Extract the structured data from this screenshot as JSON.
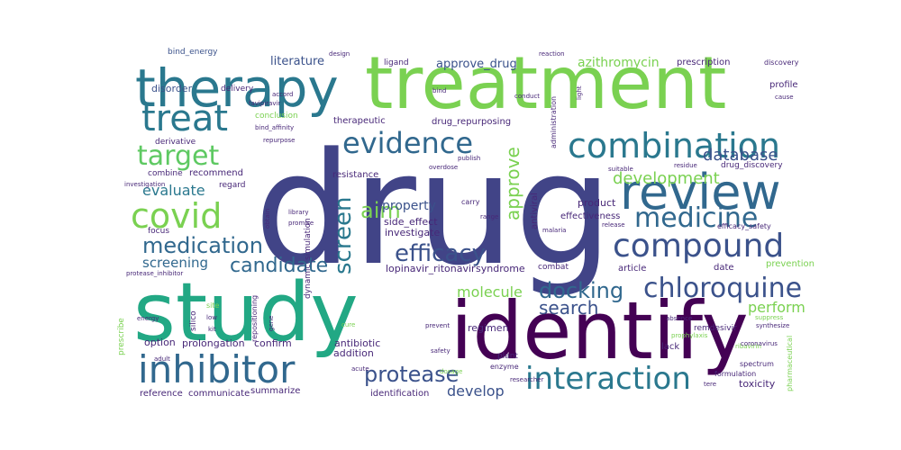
{
  "cloud": {
    "words": [
      {
        "text": "drug",
        "color": "#414487"
      },
      {
        "text": "treatment",
        "color": "#7ad151"
      },
      {
        "text": "study",
        "color": "#22a884"
      },
      {
        "text": "identify",
        "color": "#440154"
      },
      {
        "text": "therapy",
        "color": "#2a788e"
      },
      {
        "text": "review",
        "color": "#31688e"
      },
      {
        "text": "combination",
        "color": "#2a788e"
      },
      {
        "text": "treat",
        "color": "#2a788e"
      },
      {
        "text": "compound",
        "color": "#3b528b"
      },
      {
        "text": "inhibitor",
        "color": "#31688e"
      },
      {
        "text": "covid",
        "color": "#7ad151"
      },
      {
        "text": "medicine",
        "color": "#31688e"
      },
      {
        "text": "interaction",
        "color": "#2a788e"
      },
      {
        "text": "evidence",
        "color": "#31688e"
      },
      {
        "text": "target",
        "color": "#5ec962"
      },
      {
        "text": "chloroquine",
        "color": "#3b528b"
      },
      {
        "text": "medication",
        "color": "#31688e"
      },
      {
        "text": "efficacy",
        "color": "#3b528b"
      },
      {
        "text": "protease",
        "color": "#3b528b"
      },
      {
        "text": "docking",
        "color": "#31688e"
      },
      {
        "text": "screen",
        "color": "#2a788e"
      },
      {
        "text": "candidate",
        "color": "#31688e"
      },
      {
        "text": "search",
        "color": "#3b528b"
      },
      {
        "text": "aim",
        "color": "#7ad151"
      },
      {
        "text": "approve",
        "color": "#7ad151"
      },
      {
        "text": "database",
        "color": "#3b528b"
      },
      {
        "text": "development",
        "color": "#7ad151"
      },
      {
        "text": "evaluate",
        "color": "#2a788e"
      },
      {
        "text": "screening",
        "color": "#31688e"
      },
      {
        "text": "molecule",
        "color": "#7ad151"
      },
      {
        "text": "perform",
        "color": "#7ad151"
      },
      {
        "text": "property",
        "color": "#3b528b"
      },
      {
        "text": "develop",
        "color": "#3b528b"
      },
      {
        "text": "azithromycin",
        "color": "#7ad151"
      },
      {
        "text": "approve_drug",
        "color": "#3b528b"
      },
      {
        "text": "literature",
        "color": "#3b528b"
      },
      {
        "text": "disorder",
        "color": "#3b528b"
      },
      {
        "text": "delivery",
        "color": "#482878"
      },
      {
        "text": "bind_energy",
        "color": "#3b528b"
      },
      {
        "text": "drug_repurposing",
        "color": "#482878"
      },
      {
        "text": "therapeutic",
        "color": "#482878"
      },
      {
        "text": "regimen",
        "color": "#482878"
      },
      {
        "text": "resistance",
        "color": "#482878"
      },
      {
        "text": "side_effect",
        "color": "#482878"
      },
      {
        "text": "investigate",
        "color": "#482878"
      },
      {
        "text": "effectiveness",
        "color": "#482878"
      },
      {
        "text": "product",
        "color": "#482878"
      },
      {
        "text": "prescription",
        "color": "#482878"
      },
      {
        "text": "discovery",
        "color": "#482878"
      },
      {
        "text": "profile",
        "color": "#482878"
      },
      {
        "text": "antibiotic",
        "color": "#482878"
      },
      {
        "text": "addition",
        "color": "#482878"
      },
      {
        "text": "identification",
        "color": "#482878"
      },
      {
        "text": "toxicity",
        "color": "#482878"
      },
      {
        "text": "reference",
        "color": "#482878"
      },
      {
        "text": "communicate",
        "color": "#482878"
      },
      {
        "text": "summarize",
        "color": "#482878"
      },
      {
        "text": "option",
        "color": "#482878"
      },
      {
        "text": "prolongation",
        "color": "#482878"
      },
      {
        "text": "confirm",
        "color": "#482878"
      },
      {
        "text": "lopinavir_ritonavir",
        "color": "#482878"
      },
      {
        "text": "syndrome",
        "color": "#482878"
      },
      {
        "text": "article",
        "color": "#482878"
      },
      {
        "text": "date",
        "color": "#482878"
      },
      {
        "text": "combat",
        "color": "#482878"
      },
      {
        "text": "focus",
        "color": "#482878"
      },
      {
        "text": "derivative",
        "color": "#482878"
      },
      {
        "text": "combine",
        "color": "#482878"
      },
      {
        "text": "recommend",
        "color": "#482878"
      },
      {
        "text": "regard",
        "color": "#482878"
      },
      {
        "text": "ligand",
        "color": "#482878"
      },
      {
        "text": "design",
        "color": "#482878"
      },
      {
        "text": "reaction",
        "color": "#482878"
      },
      {
        "text": "conduct",
        "color": "#482878"
      },
      {
        "text": "publish",
        "color": "#482878"
      },
      {
        "text": "range",
        "color": "#482878"
      },
      {
        "text": "carry",
        "color": "#482878"
      },
      {
        "text": "plant",
        "color": "#482878"
      },
      {
        "text": "enzyme",
        "color": "#482878"
      },
      {
        "text": "lack",
        "color": "#482878"
      },
      {
        "text": "release",
        "color": "#482878"
      },
      {
        "text": "formulation",
        "color": "#482878"
      },
      {
        "text": "spectrum",
        "color": "#482878"
      },
      {
        "text": "prevention",
        "color": "#7ad151"
      },
      {
        "text": "ribavirin",
        "color": "#7ad151"
      },
      {
        "text": "cure",
        "color": "#7ad151"
      },
      {
        "text": "remdesivir",
        "color": "#482878"
      },
      {
        "text": "prophylaxis",
        "color": "#7ad151"
      },
      {
        "text": "administration",
        "color": "#482878"
      },
      {
        "text": "library",
        "color": "#482878"
      },
      {
        "text": "promise",
        "color": "#482878"
      },
      {
        "text": "suitable",
        "color": "#482878"
      },
      {
        "text": "residue",
        "color": "#482878"
      },
      {
        "text": "drug_discovery",
        "color": "#482878"
      },
      {
        "text": "malaria",
        "color": "#482878"
      },
      {
        "text": "efficacy_safety",
        "color": "#482878"
      },
      {
        "text": "bind_affinity",
        "color": "#482878"
      },
      {
        "text": "conclusion",
        "color": "#7ad151"
      },
      {
        "text": "favipiravir",
        "color": "#482878"
      },
      {
        "text": "repurpose",
        "color": "#482878"
      },
      {
        "text": "cause",
        "color": "#482878"
      },
      {
        "text": "investigation",
        "color": "#482878"
      },
      {
        "text": "protease_inhibitor",
        "color": "#482878"
      },
      {
        "text": "silico",
        "color": "#482878"
      },
      {
        "text": "energy",
        "color": "#482878"
      },
      {
        "text": "dynamic_simulation",
        "color": "#482878"
      },
      {
        "text": "antiviral",
        "color": "#482878"
      },
      {
        "text": "safety",
        "color": "#482878"
      },
      {
        "text": "obtain",
        "color": "#482878"
      },
      {
        "text": "gene",
        "color": "#482878"
      },
      {
        "text": "light",
        "color": "#482878"
      },
      {
        "text": "bind",
        "color": "#482878"
      },
      {
        "text": "accord",
        "color": "#482878"
      },
      {
        "text": "overdose",
        "color": "#482878"
      },
      {
        "text": "prevent",
        "color": "#482878"
      },
      {
        "text": "acute",
        "color": "#482878"
      },
      {
        "text": "dosage",
        "color": "#7ad151"
      },
      {
        "text": "researcher",
        "color": "#482878"
      },
      {
        "text": "pharmaceutical",
        "color": "#7ad151"
      },
      {
        "text": "coronavirus",
        "color": "#482878"
      },
      {
        "text": "prescribe",
        "color": "#7ad151"
      },
      {
        "text": "adult",
        "color": "#482878"
      },
      {
        "text": "low",
        "color": "#482878"
      },
      {
        "text": "site",
        "color": "#7ad151"
      },
      {
        "text": "kit",
        "color": "#482878"
      },
      {
        "text": "repositioning",
        "color": "#482878"
      },
      {
        "text": "tere",
        "color": "#482878"
      },
      {
        "text": "absence",
        "color": "#482878"
      },
      {
        "text": "synthesize",
        "color": "#482878"
      },
      {
        "text": "suppress",
        "color": "#7ad151"
      }
    ]
  }
}
